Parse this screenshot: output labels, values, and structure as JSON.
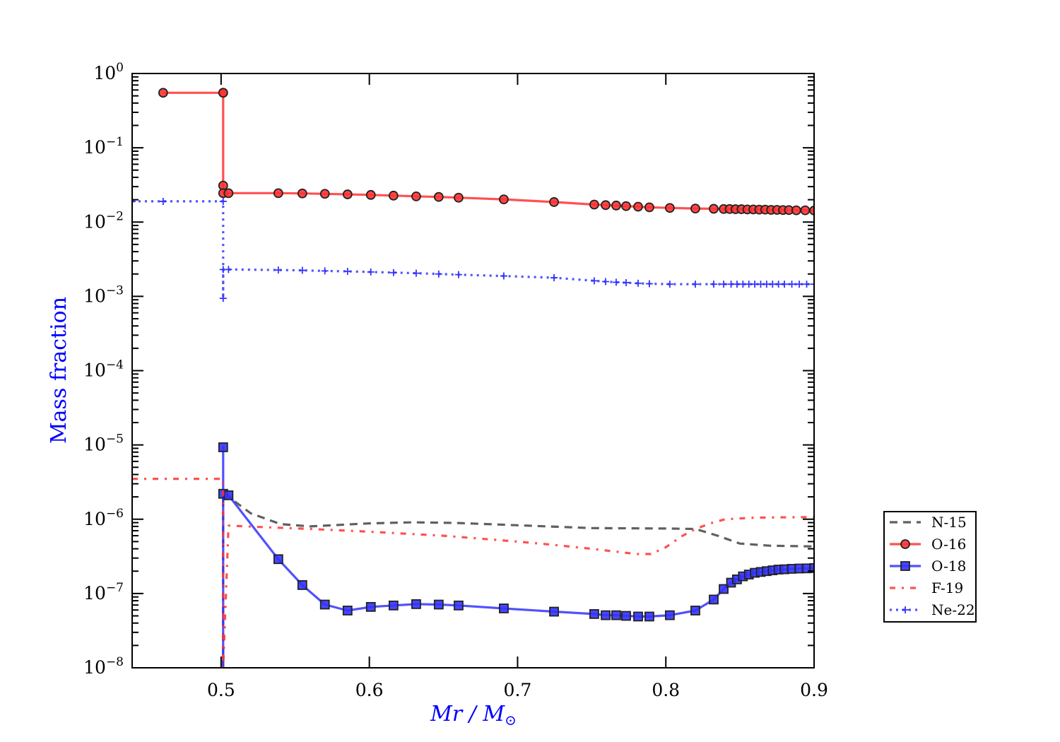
{
  "chart_data": {
    "type": "line",
    "title": "",
    "xlabel": "Mr / M",
    "xlabel_sub": "⊙",
    "ylabel": "Mass fraction",
    "label_color": "#0000ff",
    "xlim": [
      0.44,
      0.9
    ],
    "ylim": [
      1e-08,
      1
    ],
    "yscale": "log",
    "grid": false,
    "legend_position": "outside-right",
    "x_ticks": [
      0.5,
      0.6,
      0.7,
      0.8,
      0.9
    ],
    "x_tick_labels": [
      "0.5",
      "0.6",
      "0.7",
      "0.8",
      "0.9"
    ],
    "y_ticks": [
      1,
      0.1,
      0.01,
      0.001,
      0.0001,
      1e-05,
      1e-06,
      1e-07,
      1e-08
    ],
    "y_tick_labels": [
      {
        "base": "10",
        "exp": "0"
      },
      {
        "base": "10",
        "exp": "−1"
      },
      {
        "base": "10",
        "exp": "−2"
      },
      {
        "base": "10",
        "exp": "−3"
      },
      {
        "base": "10",
        "exp": "−4"
      },
      {
        "base": "10",
        "exp": "−5"
      },
      {
        "base": "10",
        "exp": "−6"
      },
      {
        "base": "10",
        "exp": "−7"
      },
      {
        "base": "10",
        "exp": "−8"
      }
    ],
    "series": [
      {
        "name": "N-15",
        "color": "#444444",
        "style": "dashed",
        "marker": "none",
        "x": [
          0.5014,
          0.5014,
          0.505,
          0.52,
          0.54,
          0.56,
          0.6,
          0.63,
          0.66,
          0.7,
          0.75,
          0.8,
          0.82,
          0.835,
          0.85,
          0.87,
          0.9
        ],
        "y": [
          1e-10,
          2.2e-06,
          2e-06,
          1.2e-06,
          8.6e-07,
          8e-07,
          8.8e-07,
          9.1e-07,
          8.9e-07,
          8.3e-07,
          7.6e-07,
          7.5e-07,
          7.4e-07,
          6e-07,
          4.7e-07,
          4.4e-07,
          4.3e-07
        ]
      },
      {
        "name": "O-16",
        "color": "#ff3333",
        "style": "solid",
        "marker": "circle",
        "x": [
          0.4609,
          0.5014,
          0.5014,
          0.5014,
          0.5014,
          0.505,
          0.5386,
          0.5548,
          0.57,
          0.5853,
          0.601,
          0.6163,
          0.6316,
          0.6468,
          0.6602,
          0.6907,
          0.7246,
          0.7517,
          0.7594,
          0.7665,
          0.7732,
          0.7813,
          0.7889,
          0.8027,
          0.8199,
          0.8323,
          0.839,
          0.843,
          0.847,
          0.851,
          0.855,
          0.859,
          0.863,
          0.867,
          0.871,
          0.875,
          0.879,
          0.883,
          0.888,
          0.894,
          0.9
        ],
        "y": [
          0.55,
          0.55,
          0.55,
          0.031,
          0.0245,
          0.0245,
          0.0245,
          0.0243,
          0.024,
          0.0236,
          0.0232,
          0.0227,
          0.0222,
          0.0218,
          0.0213,
          0.0202,
          0.0186,
          0.0172,
          0.0169,
          0.0167,
          0.0164,
          0.0161,
          0.0158,
          0.0155,
          0.0152,
          0.0151,
          0.015,
          0.015,
          0.0149,
          0.0149,
          0.0148,
          0.0148,
          0.0147,
          0.0147,
          0.0146,
          0.0146,
          0.0145,
          0.0145,
          0.0144,
          0.0144,
          0.0143
        ]
      },
      {
        "name": "O-18",
        "color": "#3333ff",
        "style": "solid",
        "marker": "square",
        "x": [
          0.5014,
          0.5014,
          0.5014,
          0.505,
          0.5386,
          0.5548,
          0.57,
          0.5853,
          0.601,
          0.6163,
          0.6316,
          0.6468,
          0.6602,
          0.6907,
          0.7246,
          0.7517,
          0.7594,
          0.7665,
          0.7732,
          0.7813,
          0.7889,
          0.8027,
          0.8199,
          0.8323,
          0.839,
          0.844,
          0.848,
          0.852,
          0.856,
          0.86,
          0.864,
          0.868,
          0.872,
          0.876,
          0.88,
          0.885,
          0.89,
          0.895,
          0.9
        ],
        "y": [
          1e-10,
          9.3e-06,
          2.2e-06,
          2.1e-06,
          2.9e-07,
          1.3e-07,
          7.1e-08,
          5.9e-08,
          6.6e-08,
          6.9e-08,
          7.2e-08,
          7.1e-08,
          6.9e-08,
          6.3e-08,
          5.7e-08,
          5.3e-08,
          5.1e-08,
          5.1e-08,
          5e-08,
          4.9e-08,
          4.9e-08,
          5.1e-08,
          5.9e-08,
          8.3e-08,
          1.15e-07,
          1.4e-07,
          1.55e-07,
          1.7e-07,
          1.8e-07,
          1.9e-07,
          1.95e-07,
          2e-07,
          2.05e-07,
          2.1e-07,
          2.12e-07,
          2.15e-07,
          2.17e-07,
          2.18e-07,
          2.2e-07
        ]
      },
      {
        "name": "F-19",
        "color": "#ff3333",
        "style": "dashdot",
        "marker": "none",
        "x": [
          0.44,
          0.5,
          0.5014,
          0.5014,
          0.505,
          0.53,
          0.56,
          0.6,
          0.65,
          0.7,
          0.72,
          0.75,
          0.78,
          0.79,
          0.8,
          0.81,
          0.82,
          0.83,
          0.84,
          0.86,
          0.9
        ],
        "y": [
          3.5e-06,
          3.5e-06,
          3.5e-06,
          1e-10,
          8.2e-07,
          7.8e-07,
          7.4e-07,
          6.8e-07,
          6e-07,
          5e-07,
          4.6e-07,
          4e-07,
          3.4e-07,
          3.4e-07,
          4.2e-07,
          5.8e-07,
          7.4e-07,
          8.8e-07,
          1e-06,
          1.05e-06,
          1.07e-06
        ]
      },
      {
        "name": "Ne-22",
        "color": "#3333ff",
        "style": "dotted",
        "marker": "plus",
        "x": [
          0.44,
          0.4609,
          0.5014,
          0.5014,
          0.5014,
          0.505,
          0.5386,
          0.5548,
          0.57,
          0.5853,
          0.601,
          0.6163,
          0.6316,
          0.6468,
          0.6602,
          0.6907,
          0.7246,
          0.7517,
          0.7594,
          0.7665,
          0.7732,
          0.7813,
          0.7889,
          0.8027,
          0.8199,
          0.8323,
          0.839,
          0.844,
          0.848,
          0.852,
          0.856,
          0.86,
          0.864,
          0.868,
          0.872,
          0.876,
          0.88,
          0.885,
          0.89,
          0.895,
          0.9
        ],
        "y": [
          0.019,
          0.019,
          0.019,
          0.00094,
          0.0023,
          0.0023,
          0.00226,
          0.00224,
          0.0022,
          0.00217,
          0.00213,
          0.00209,
          0.00205,
          0.002,
          0.00196,
          0.00188,
          0.00178,
          0.00162,
          0.00158,
          0.00155,
          0.00153,
          0.0015,
          0.00148,
          0.00146,
          0.00146,
          0.00146,
          0.00146,
          0.00146,
          0.00146,
          0.00146,
          0.00146,
          0.00146,
          0.00146,
          0.00146,
          0.00146,
          0.00146,
          0.00146,
          0.00146,
          0.00146,
          0.00146,
          0.00146
        ]
      }
    ]
  }
}
